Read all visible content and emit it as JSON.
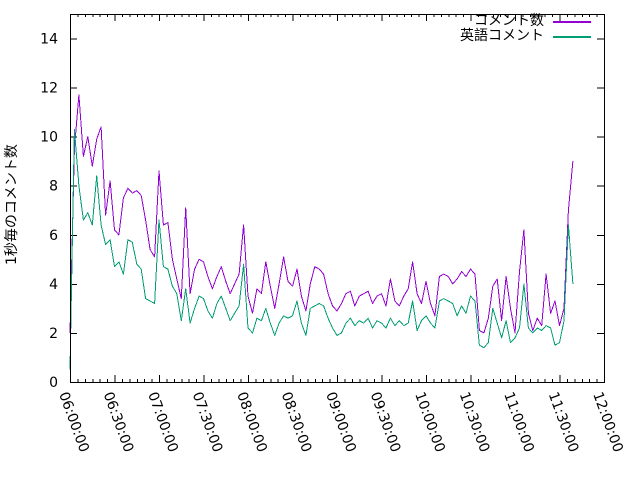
{
  "window": {
    "background": "#ffffff"
  },
  "chart_data": {
    "type": "line",
    "title": "",
    "xlabel": "",
    "ylabel": "1秒毎のコメント数",
    "grid": false,
    "legend_position": "top-right",
    "x_axis": {
      "start_hour": 6,
      "end_hour": 12,
      "major_tick_labels": [
        "06:00:00",
        "06:30:00",
        "07:00:00",
        "07:30:00",
        "08:00:00",
        "08:30:00",
        "09:00:00",
        "09:30:00",
        "10:00:00",
        "10:30:00",
        "11:00:00",
        "11:30:00",
        "12:00:00"
      ],
      "minor_tick_minutes": 5,
      "label_rotation_deg": 70
    },
    "y_axis": {
      "min": 0,
      "max": 15,
      "tick_step": 2,
      "tick_labels": [
        "0",
        "2",
        "4",
        "6",
        "8",
        "10",
        "12",
        "14"
      ]
    },
    "sample_start_hour": 6.0,
    "sample_step_minutes": 3,
    "series": [
      {
        "name": "コメント数",
        "color": "#9400D3",
        "values": [
          2.0,
          9.5,
          11.7,
          9.2,
          10.0,
          8.8,
          9.9,
          10.4,
          6.8,
          8.2,
          6.2,
          6.0,
          7.5,
          7.9,
          7.7,
          7.8,
          7.6,
          6.6,
          5.4,
          5.1,
          8.6,
          6.4,
          6.5,
          5.0,
          4.2,
          3.4,
          7.1,
          3.6,
          4.6,
          5.0,
          4.9,
          4.3,
          3.8,
          4.3,
          4.7,
          4.1,
          3.6,
          4.0,
          4.4,
          6.4,
          3.5,
          2.8,
          3.8,
          3.6,
          4.9,
          3.9,
          3.0,
          4.0,
          5.1,
          4.1,
          3.9,
          4.6,
          3.5,
          2.9,
          4.0,
          4.7,
          4.6,
          4.4,
          3.6,
          3.1,
          2.9,
          3.2,
          3.6,
          3.7,
          3.1,
          3.5,
          3.6,
          3.7,
          3.2,
          3.5,
          3.6,
          3.1,
          4.2,
          3.3,
          3.1,
          3.5,
          3.8,
          4.9,
          3.6,
          3.2,
          4.1,
          3.2,
          2.7,
          4.3,
          4.4,
          4.3,
          4.0,
          4.2,
          4.5,
          4.3,
          4.6,
          4.4,
          2.1,
          2.0,
          2.6,
          3.9,
          4.2,
          2.5,
          4.3,
          3.0,
          2.0,
          4.5,
          6.2,
          2.8,
          2.1,
          2.6,
          2.3,
          4.4,
          2.8,
          3.3,
          2.3,
          3.0,
          7.0,
          9.0
        ]
      },
      {
        "name": "英語コメント",
        "color": "#009E73",
        "values": [
          0.5,
          10.3,
          8.0,
          6.6,
          6.9,
          6.4,
          8.4,
          6.4,
          5.6,
          5.8,
          4.7,
          4.9,
          4.4,
          5.8,
          5.7,
          4.8,
          4.6,
          3.4,
          3.3,
          3.2,
          6.6,
          4.7,
          4.6,
          3.9,
          3.6,
          2.5,
          3.8,
          2.4,
          3.0,
          3.5,
          3.4,
          2.9,
          2.6,
          3.2,
          3.5,
          3.0,
          2.5,
          2.8,
          3.1,
          4.8,
          2.2,
          2.0,
          2.6,
          2.5,
          3.0,
          2.4,
          1.9,
          2.4,
          2.7,
          2.6,
          2.7,
          3.3,
          2.4,
          1.9,
          3.0,
          3.1,
          3.2,
          3.1,
          2.6,
          2.2,
          1.9,
          2.0,
          2.4,
          2.6,
          2.3,
          2.5,
          2.4,
          2.6,
          2.2,
          2.5,
          2.4,
          2.2,
          2.6,
          2.3,
          2.5,
          2.3,
          2.4,
          3.3,
          2.1,
          2.5,
          2.7,
          2.4,
          2.2,
          3.3,
          3.4,
          3.3,
          3.2,
          2.7,
          3.1,
          2.8,
          3.5,
          3.3,
          1.5,
          1.4,
          1.6,
          3.0,
          2.4,
          1.8,
          2.5,
          1.6,
          1.8,
          2.2,
          4.0,
          2.2,
          2.0,
          2.2,
          2.1,
          2.3,
          2.2,
          1.5,
          1.6,
          2.5,
          6.4,
          4.0
        ]
      }
    ]
  }
}
